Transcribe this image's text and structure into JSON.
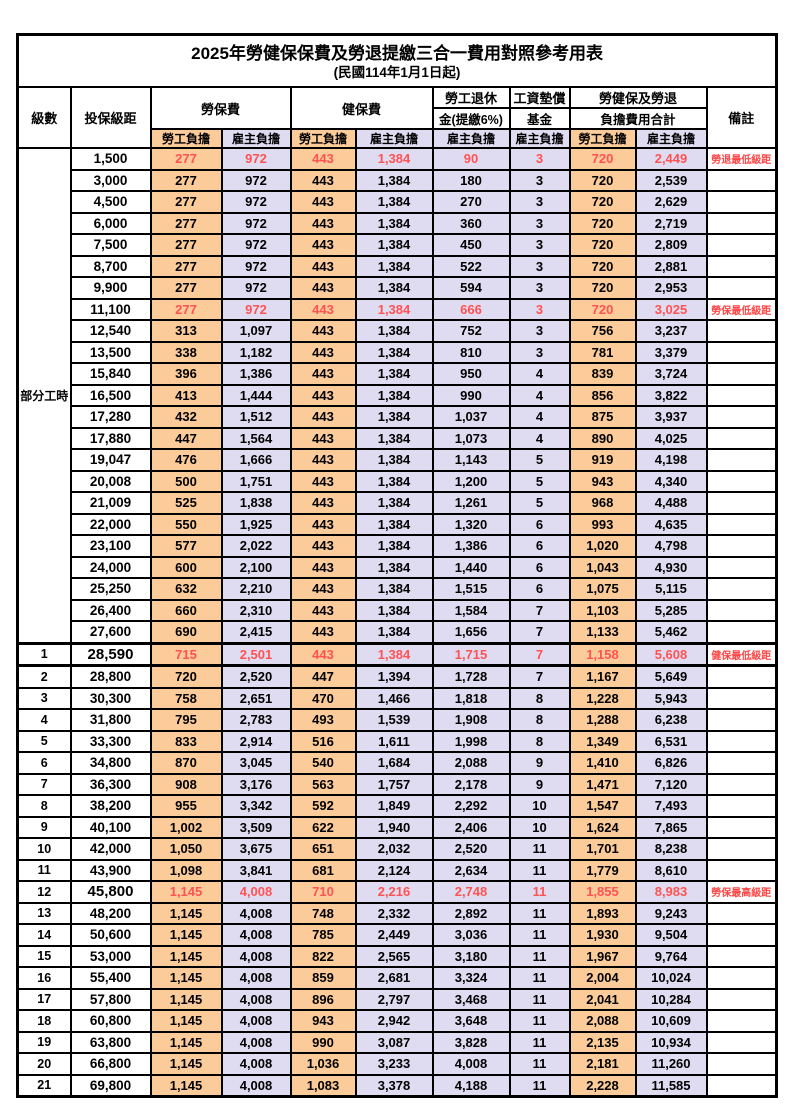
{
  "title": "2025年勞健保保費及勞退提繳三合一費用對照參考用表",
  "subtitle": "(民國114年1月1日起)",
  "header": {
    "level": "級數",
    "bracket": "投保級距",
    "labor_insurance": "勞保費",
    "health_insurance": "健保費",
    "pension_line1": "勞工退休",
    "pension_line2": "金(提繳6%)",
    "wage_fund_line1": "工資墊償",
    "wage_fund_line2": "基金",
    "total_line1": "勞健保及勞退",
    "total_line2": "負擔費用合計",
    "note": "備註",
    "employee": "勞工負擔",
    "employer": "雇主負擔"
  },
  "part_time_label": "部分工時",
  "colors": {
    "employee_bg": "#FBCB99",
    "employer_bg": "#DFDCF2",
    "highlight_text": "#FF5252",
    "note_text": "#FF4545",
    "border": "#000000"
  },
  "value_columns_order": [
    "labor-ins-employee",
    "labor-ins-employer",
    "health-ins-employee",
    "health-ins-employer",
    "pension-employer",
    "wage-fund-employer",
    "total-employee",
    "total-employer"
  ],
  "rows": [
    {
      "lv": "",
      "br": "1,500",
      "v": [
        "277",
        "972",
        "443",
        "1,384",
        "90",
        "3",
        "720",
        "2,449"
      ],
      "note": "勞退最低級距",
      "red": true,
      "big": false
    },
    {
      "lv": "",
      "br": "3,000",
      "v": [
        "277",
        "972",
        "443",
        "1,384",
        "180",
        "3",
        "720",
        "2,539"
      ],
      "note": "",
      "red": false,
      "big": false
    },
    {
      "lv": "",
      "br": "4,500",
      "v": [
        "277",
        "972",
        "443",
        "1,384",
        "270",
        "3",
        "720",
        "2,629"
      ],
      "note": "",
      "red": false,
      "big": false
    },
    {
      "lv": "",
      "br": "6,000",
      "v": [
        "277",
        "972",
        "443",
        "1,384",
        "360",
        "3",
        "720",
        "2,719"
      ],
      "note": "",
      "red": false,
      "big": false
    },
    {
      "lv": "",
      "br": "7,500",
      "v": [
        "277",
        "972",
        "443",
        "1,384",
        "450",
        "3",
        "720",
        "2,809"
      ],
      "note": "",
      "red": false,
      "big": false
    },
    {
      "lv": "",
      "br": "8,700",
      "v": [
        "277",
        "972",
        "443",
        "1,384",
        "522",
        "3",
        "720",
        "2,881"
      ],
      "note": "",
      "red": false,
      "big": false
    },
    {
      "lv": "",
      "br": "9,900",
      "v": [
        "277",
        "972",
        "443",
        "1,384",
        "594",
        "3",
        "720",
        "2,953"
      ],
      "note": "",
      "red": false,
      "big": false
    },
    {
      "lv": "",
      "br": "11,100",
      "v": [
        "277",
        "972",
        "443",
        "1,384",
        "666",
        "3",
        "720",
        "3,025"
      ],
      "note": "勞保最低級距",
      "red": true,
      "big": false
    },
    {
      "lv": "",
      "br": "12,540",
      "v": [
        "313",
        "1,097",
        "443",
        "1,384",
        "752",
        "3",
        "756",
        "3,237"
      ],
      "note": "",
      "red": false,
      "big": false
    },
    {
      "lv": "",
      "br": "13,500",
      "v": [
        "338",
        "1,182",
        "443",
        "1,384",
        "810",
        "3",
        "781",
        "3,379"
      ],
      "note": "",
      "red": false,
      "big": false
    },
    {
      "lv": "",
      "br": "15,840",
      "v": [
        "396",
        "1,386",
        "443",
        "1,384",
        "950",
        "4",
        "839",
        "3,724"
      ],
      "note": "",
      "red": false,
      "big": false
    },
    {
      "lv": "",
      "br": "16,500",
      "v": [
        "413",
        "1,444",
        "443",
        "1,384",
        "990",
        "4",
        "856",
        "3,822"
      ],
      "note": "",
      "red": false,
      "big": false
    },
    {
      "lv": "",
      "br": "17,280",
      "v": [
        "432",
        "1,512",
        "443",
        "1,384",
        "1,037",
        "4",
        "875",
        "3,937"
      ],
      "note": "",
      "red": false,
      "big": false
    },
    {
      "lv": "",
      "br": "17,880",
      "v": [
        "447",
        "1,564",
        "443",
        "1,384",
        "1,073",
        "4",
        "890",
        "4,025"
      ],
      "note": "",
      "red": false,
      "big": false
    },
    {
      "lv": "",
      "br": "19,047",
      "v": [
        "476",
        "1,666",
        "443",
        "1,384",
        "1,143",
        "5",
        "919",
        "4,198"
      ],
      "note": "",
      "red": false,
      "big": false
    },
    {
      "lv": "",
      "br": "20,008",
      "v": [
        "500",
        "1,751",
        "443",
        "1,384",
        "1,200",
        "5",
        "943",
        "4,340"
      ],
      "note": "",
      "red": false,
      "big": false
    },
    {
      "lv": "",
      "br": "21,009",
      "v": [
        "525",
        "1,838",
        "443",
        "1,384",
        "1,261",
        "5",
        "968",
        "4,488"
      ],
      "note": "",
      "red": false,
      "big": false
    },
    {
      "lv": "",
      "br": "22,000",
      "v": [
        "550",
        "1,925",
        "443",
        "1,384",
        "1,320",
        "6",
        "993",
        "4,635"
      ],
      "note": "",
      "red": false,
      "big": false
    },
    {
      "lv": "",
      "br": "23,100",
      "v": [
        "577",
        "2,022",
        "443",
        "1,384",
        "1,386",
        "6",
        "1,020",
        "4,798"
      ],
      "note": "",
      "red": false,
      "big": false
    },
    {
      "lv": "",
      "br": "24,000",
      "v": [
        "600",
        "2,100",
        "443",
        "1,384",
        "1,440",
        "6",
        "1,043",
        "4,930"
      ],
      "note": "",
      "red": false,
      "big": false
    },
    {
      "lv": "",
      "br": "25,250",
      "v": [
        "632",
        "2,210",
        "443",
        "1,384",
        "1,515",
        "6",
        "1,075",
        "5,115"
      ],
      "note": "",
      "red": false,
      "big": false
    },
    {
      "lv": "",
      "br": "26,400",
      "v": [
        "660",
        "2,310",
        "443",
        "1,384",
        "1,584",
        "7",
        "1,103",
        "5,285"
      ],
      "note": "",
      "red": false,
      "big": false
    },
    {
      "lv": "",
      "br": "27,600",
      "v": [
        "690",
        "2,415",
        "443",
        "1,384",
        "1,656",
        "7",
        "1,133",
        "5,462"
      ],
      "note": "",
      "red": false,
      "big": false
    },
    {
      "lv": "1",
      "br": "28,590",
      "v": [
        "715",
        "2,501",
        "443",
        "1,384",
        "1,715",
        "7",
        "1,158",
        "5,608"
      ],
      "note": "健保最低級距",
      "red": true,
      "big": true
    },
    {
      "lv": "2",
      "br": "28,800",
      "v": [
        "720",
        "2,520",
        "447",
        "1,394",
        "1,728",
        "7",
        "1,167",
        "5,649"
      ],
      "note": "",
      "red": false,
      "big": false
    },
    {
      "lv": "3",
      "br": "30,300",
      "v": [
        "758",
        "2,651",
        "470",
        "1,466",
        "1,818",
        "8",
        "1,228",
        "5,943"
      ],
      "note": "",
      "red": false,
      "big": false
    },
    {
      "lv": "4",
      "br": "31,800",
      "v": [
        "795",
        "2,783",
        "493",
        "1,539",
        "1,908",
        "8",
        "1,288",
        "6,238"
      ],
      "note": "",
      "red": false,
      "big": false
    },
    {
      "lv": "5",
      "br": "33,300",
      "v": [
        "833",
        "2,914",
        "516",
        "1,611",
        "1,998",
        "8",
        "1,349",
        "6,531"
      ],
      "note": "",
      "red": false,
      "big": false
    },
    {
      "lv": "6",
      "br": "34,800",
      "v": [
        "870",
        "3,045",
        "540",
        "1,684",
        "2,088",
        "9",
        "1,410",
        "6,826"
      ],
      "note": "",
      "red": false,
      "big": false
    },
    {
      "lv": "7",
      "br": "36,300",
      "v": [
        "908",
        "3,176",
        "563",
        "1,757",
        "2,178",
        "9",
        "1,471",
        "7,120"
      ],
      "note": "",
      "red": false,
      "big": false
    },
    {
      "lv": "8",
      "br": "38,200",
      "v": [
        "955",
        "3,342",
        "592",
        "1,849",
        "2,292",
        "10",
        "1,547",
        "7,493"
      ],
      "note": "",
      "red": false,
      "big": false
    },
    {
      "lv": "9",
      "br": "40,100",
      "v": [
        "1,002",
        "3,509",
        "622",
        "1,940",
        "2,406",
        "10",
        "1,624",
        "7,865"
      ],
      "note": "",
      "red": false,
      "big": false
    },
    {
      "lv": "10",
      "br": "42,000",
      "v": [
        "1,050",
        "3,675",
        "651",
        "2,032",
        "2,520",
        "11",
        "1,701",
        "8,238"
      ],
      "note": "",
      "red": false,
      "big": false
    },
    {
      "lv": "11",
      "br": "43,900",
      "v": [
        "1,098",
        "3,841",
        "681",
        "2,124",
        "2,634",
        "11",
        "1,779",
        "8,610"
      ],
      "note": "",
      "red": false,
      "big": false
    },
    {
      "lv": "12",
      "br": "45,800",
      "v": [
        "1,145",
        "4,008",
        "710",
        "2,216",
        "2,748",
        "11",
        "1,855",
        "8,983"
      ],
      "note": "勞保最高級距",
      "red": true,
      "big": true
    },
    {
      "lv": "13",
      "br": "48,200",
      "v": [
        "1,145",
        "4,008",
        "748",
        "2,332",
        "2,892",
        "11",
        "1,893",
        "9,243"
      ],
      "note": "",
      "red": false,
      "big": false
    },
    {
      "lv": "14",
      "br": "50,600",
      "v": [
        "1,145",
        "4,008",
        "785",
        "2,449",
        "3,036",
        "11",
        "1,930",
        "9,504"
      ],
      "note": "",
      "red": false,
      "big": false
    },
    {
      "lv": "15",
      "br": "53,000",
      "v": [
        "1,145",
        "4,008",
        "822",
        "2,565",
        "3,180",
        "11",
        "1,967",
        "9,764"
      ],
      "note": "",
      "red": false,
      "big": false
    },
    {
      "lv": "16",
      "br": "55,400",
      "v": [
        "1,145",
        "4,008",
        "859",
        "2,681",
        "3,324",
        "11",
        "2,004",
        "10,024"
      ],
      "note": "",
      "red": false,
      "big": false
    },
    {
      "lv": "17",
      "br": "57,800",
      "v": [
        "1,145",
        "4,008",
        "896",
        "2,797",
        "3,468",
        "11",
        "2,041",
        "10,284"
      ],
      "note": "",
      "red": false,
      "big": false
    },
    {
      "lv": "18",
      "br": "60,800",
      "v": [
        "1,145",
        "4,008",
        "943",
        "2,942",
        "3,648",
        "11",
        "2,088",
        "10,609"
      ],
      "note": "",
      "red": false,
      "big": false
    },
    {
      "lv": "19",
      "br": "63,800",
      "v": [
        "1,145",
        "4,008",
        "990",
        "3,087",
        "3,828",
        "11",
        "2,135",
        "10,934"
      ],
      "note": "",
      "red": false,
      "big": false
    },
    {
      "lv": "20",
      "br": "66,800",
      "v": [
        "1,145",
        "4,008",
        "1,036",
        "3,233",
        "4,008",
        "11",
        "2,181",
        "11,260"
      ],
      "note": "",
      "red": false,
      "big": false
    },
    {
      "lv": "21",
      "br": "69,800",
      "v": [
        "1,145",
        "4,008",
        "1,083",
        "3,378",
        "4,188",
        "11",
        "2,228",
        "11,585"
      ],
      "note": "",
      "red": false,
      "big": false
    }
  ]
}
